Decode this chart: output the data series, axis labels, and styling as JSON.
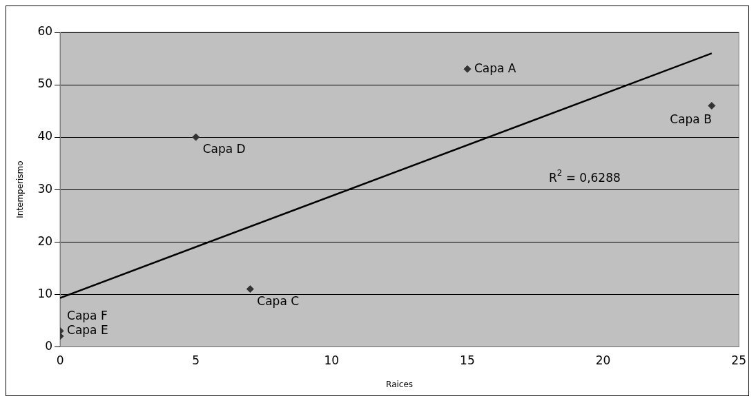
{
  "chart_data": {
    "type": "scatter",
    "xlabel": "Raices",
    "ylabel": "Intemperismo",
    "x": [
      15,
      24,
      7,
      5,
      0,
      0
    ],
    "values": [
      53,
      46,
      11,
      40,
      3,
      2
    ],
    "color": "#333333",
    "marker": "diamond",
    "grid": "y",
    "legend": false,
    "xlim": [
      0,
      25
    ],
    "xticks": [
      0,
      5,
      10,
      15,
      20,
      25
    ],
    "ylim": [
      0,
      60
    ],
    "yticks": [
      0,
      10,
      20,
      30,
      40,
      50,
      60
    ],
    "series": [
      {
        "type": "line",
        "x": [
          0,
          24
        ],
        "values": [
          9.3,
          56
        ],
        "color": "#000000",
        "line_style": "solid",
        "marker": "none"
      }
    ],
    "annotations": [
      {
        "text": "Capa A",
        "x": 15,
        "y": 53
      },
      {
        "text": "Capa B",
        "x": 24,
        "y": 46
      },
      {
        "text": "Capa C",
        "x": 7,
        "y": 11
      },
      {
        "text": "Capa D",
        "x": 5,
        "y": 40
      },
      {
        "text": "Capa E",
        "x": 0,
        "y": 3
      },
      {
        "text": "Capa F",
        "x": 0,
        "y": 2
      },
      "R$^{2}$ = 0,6288"
    ]
  }
}
